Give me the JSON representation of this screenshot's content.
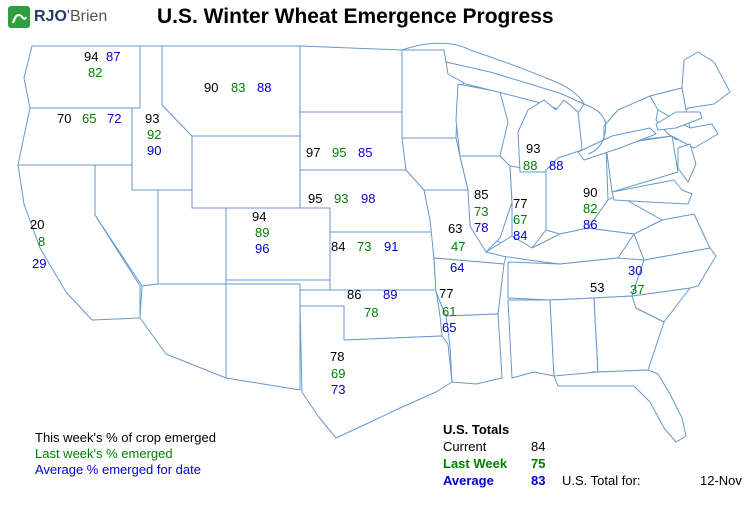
{
  "header": {
    "brand_primary": "RJO",
    "brand_secondary": "'Brien",
    "title": "U.S. Winter Wheat Emergence Progress"
  },
  "legend": {
    "items": [
      {
        "id": "current",
        "label": "This week's % of crop emerged"
      },
      {
        "id": "last_week",
        "label": "Last week's % emerged"
      },
      {
        "id": "average",
        "label": "Average % emerged for date"
      }
    ]
  },
  "totals": {
    "heading": "U.S. Totals",
    "rows": [
      {
        "id": "current",
        "label": "Current",
        "value": "84"
      },
      {
        "id": "last_week",
        "label": "Last Week",
        "value": "75"
      },
      {
        "id": "average",
        "label": "Average",
        "value": "83"
      }
    ],
    "footer_label": "U.S. Total for:",
    "footer_value": "12-Nov"
  },
  "map": {
    "states": {
      "wa": {
        "name": "Washington",
        "current": "94",
        "last_week": "82",
        "average": "87"
      },
      "or": {
        "name": "Oregon",
        "current": "70",
        "last_week": "65",
        "average": "72"
      },
      "id": {
        "name": "Idaho",
        "current": "93",
        "last_week": "92",
        "average": "90"
      },
      "mt": {
        "name": "Montana",
        "current": "90",
        "last_week": "83",
        "average": "88"
      },
      "ca": {
        "name": "California",
        "current": "20",
        "last_week": "8",
        "average": "29"
      },
      "sd": {
        "name": "South Dakota",
        "current": "97",
        "last_week": "95",
        "average": "85"
      },
      "ne": {
        "name": "Nebraska",
        "current": "95",
        "last_week": "93",
        "average": "98"
      },
      "co": {
        "name": "Colorado",
        "current": "94",
        "last_week": "89",
        "average": "96"
      },
      "ks": {
        "name": "Kansas",
        "current": "84",
        "last_week": "73",
        "average": "91"
      },
      "ok": {
        "name": "Oklahoma",
        "current": "86",
        "last_week": "78",
        "average": "89"
      },
      "tx": {
        "name": "Texas",
        "current": "78",
        "last_week": "69",
        "average": "73"
      },
      "mo": {
        "name": "Missouri",
        "current": "63",
        "last_week": "47",
        "average": "64"
      },
      "ar": {
        "name": "Arkansas",
        "current": "77",
        "last_week": "61",
        "average": "65"
      },
      "il": {
        "name": "Illinois",
        "current": "85",
        "last_week": "73",
        "average": "78"
      },
      "in": {
        "name": "Indiana",
        "current": "77",
        "last_week": "67",
        "average": "84"
      },
      "oh": {
        "name": "Ohio",
        "current": "90",
        "last_week": "82",
        "average": "86"
      },
      "mi": {
        "name": "Michigan",
        "current": "93",
        "last_week": "88",
        "average": "88"
      },
      "nc": {
        "name": "North Carolina",
        "current": "53",
        "last_week": "37",
        "average": "30"
      }
    }
  },
  "colors": {
    "current": "#000000",
    "last_week": "#008000",
    "average": "#0000CC",
    "map_outline": "#6699CC",
    "brand_green": "#2E9E3F",
    "brand_navy": "#1B3B6F",
    "brand_gray": "#555555"
  }
}
